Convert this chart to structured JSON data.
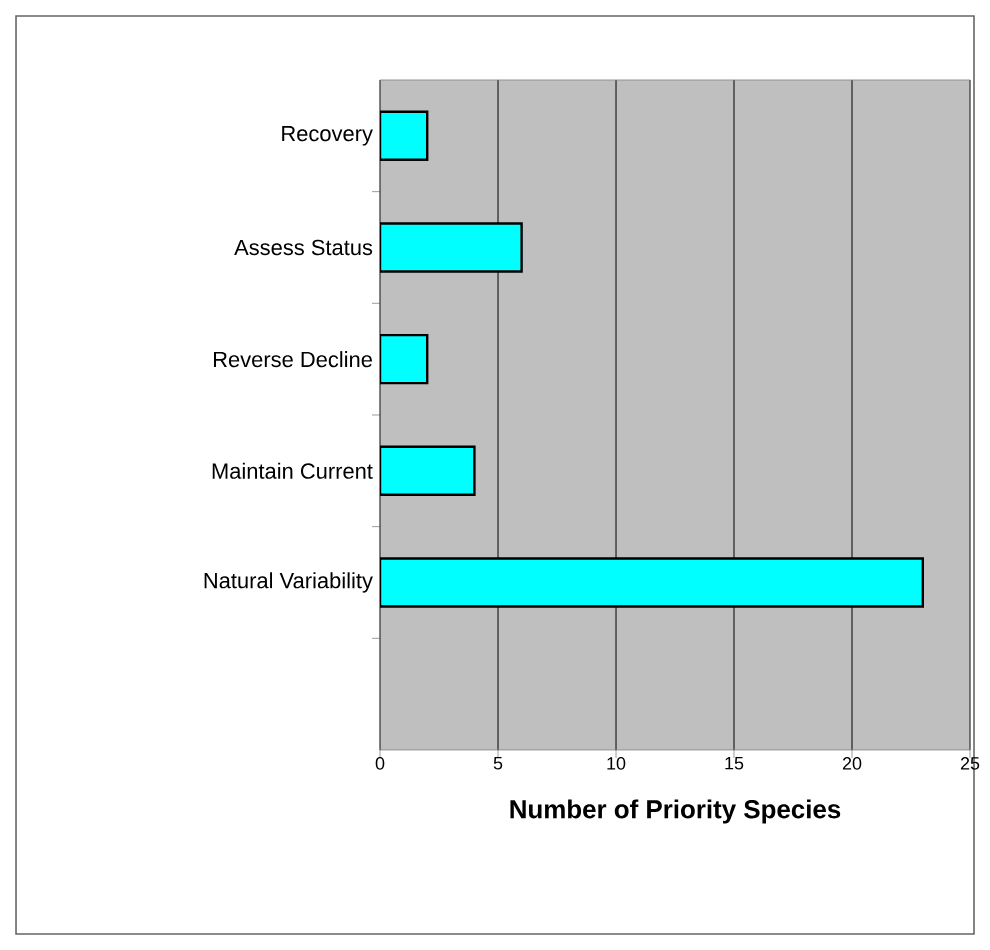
{
  "chart_data": {
    "type": "bar",
    "orientation": "horizontal",
    "xlabel": "Number of Priority Species",
    "categories": [
      "Recovery",
      "Assess Status",
      "Reverse Decline",
      "Maintain Current",
      "Natural Variability",
      null
    ],
    "values": [
      2,
      6,
      2,
      4,
      23,
      null
    ],
    "color": "#00ffff",
    "xlim": [
      0,
      25
    ],
    "xticks": [
      0,
      5,
      10,
      15,
      20,
      25
    ],
    "grid": "x"
  }
}
